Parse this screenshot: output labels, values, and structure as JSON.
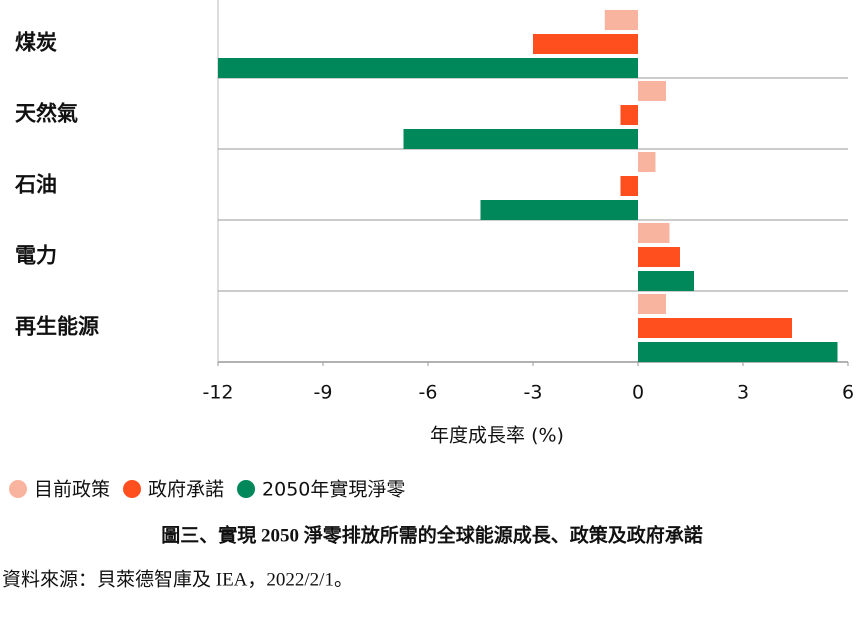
{
  "chart_data": {
    "type": "barh",
    "title": "圖三、實現 2050 淨零排放所需的全球能源成長、政策及政府承諾",
    "source": "資料來源：貝萊德智庫及 IEA，2022/2/1。",
    "xlabel": "年度成長率 (%)",
    "categories": [
      "煤炭",
      "天然氣",
      "石油",
      "電力",
      "再生能源"
    ],
    "series": [
      {
        "name": "目前政策",
        "color": "#f9b4a0",
        "values": [
          -0.95,
          0.8,
          0.5,
          0.9,
          0.8
        ]
      },
      {
        "name": "政府承諾",
        "color": "#ff4f1e",
        "values": [
          -3.0,
          -0.5,
          -0.5,
          1.2,
          4.4
        ]
      },
      {
        "name": "2050年實現淨零",
        "color": "#00875a",
        "values": [
          -12.0,
          -6.7,
          -4.5,
          1.6,
          5.7
        ]
      }
    ],
    "xlim": [
      -12,
      6
    ],
    "xticks": [
      -12,
      -9,
      -6,
      -3,
      0,
      3,
      6
    ],
    "grid": false
  }
}
